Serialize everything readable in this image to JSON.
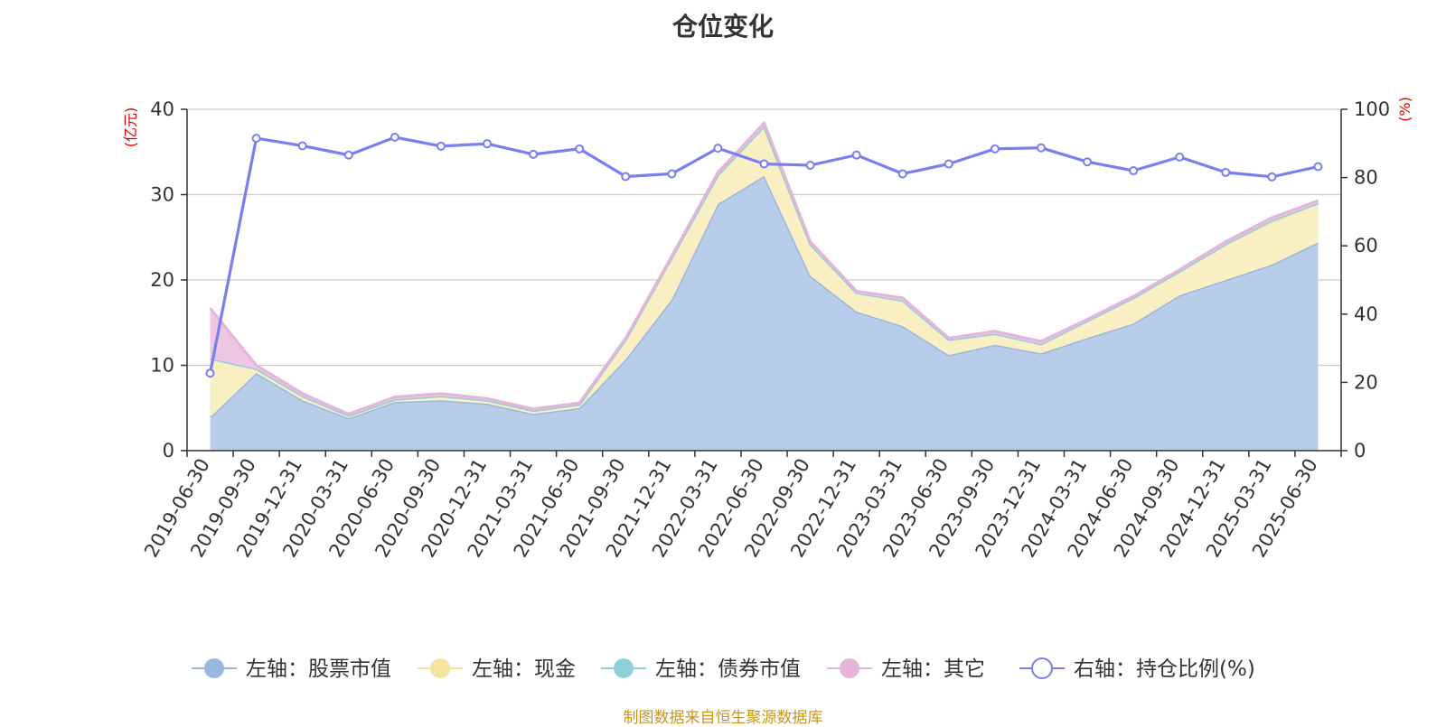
{
  "title": "仓位变化",
  "source": "制图数据来自恒生聚源数据库",
  "chart_data": {
    "type": "area",
    "categories": [
      "2019-06-30",
      "2019-09-30",
      "2019-12-31",
      "2020-03-31",
      "2020-06-30",
      "2020-09-30",
      "2020-12-31",
      "2021-03-31",
      "2021-06-30",
      "2021-09-30",
      "2021-12-31",
      "2022-03-31",
      "2022-06-30",
      "2022-09-30",
      "2022-12-31",
      "2023-03-31",
      "2023-06-30",
      "2023-09-30",
      "2023-12-31",
      "2024-03-31",
      "2024-06-30",
      "2024-09-30",
      "2024-12-31",
      "2025-03-31",
      "2025-06-30"
    ],
    "left_axis": {
      "label": "(亿元)",
      "ylim": [
        0,
        40
      ],
      "ticks": [
        0,
        10,
        20,
        30,
        40
      ]
    },
    "right_axis": {
      "label": "(%)",
      "ylim": [
        0,
        100
      ],
      "ticks": [
        0,
        20,
        40,
        60,
        80,
        100
      ]
    },
    "series": [
      {
        "name": "左轴：股票市值",
        "axis": "left",
        "stacked": true,
        "color": "#9ab6e0",
        "fill": "#b8cdea",
        "values": [
          3.9,
          9.1,
          5.9,
          3.8,
          5.7,
          5.9,
          5.5,
          4.3,
          5.0,
          10.7,
          17.7,
          28.9,
          32.2,
          20.5,
          16.3,
          14.6,
          11.2,
          12.4,
          11.4,
          13.2,
          14.9,
          18.2,
          20.0,
          21.8,
          24.4
        ]
      },
      {
        "name": "左轴：现金",
        "axis": "left",
        "stacked": true,
        "color": "#f5e3a0",
        "fill": "#faefc3",
        "values": [
          6.9,
          0.5,
          0.5,
          0.3,
          0.3,
          0.5,
          0.4,
          0.4,
          0.4,
          2.3,
          4.9,
          3.4,
          5.8,
          3.7,
          2.2,
          3.0,
          1.8,
          1.3,
          1.1,
          2.0,
          3.0,
          2.8,
          4.2,
          5.0,
          4.6
        ]
      },
      {
        "name": "左轴：债券市值",
        "axis": "left",
        "stacked": true,
        "color": "#8fd0d8",
        "fill": "#b8e3e8",
        "values": [
          0,
          0,
          0,
          0,
          0,
          0,
          0,
          0,
          0,
          0,
          0,
          0,
          0,
          0,
          0,
          0,
          0,
          0,
          0,
          0,
          0,
          0,
          0,
          0.2,
          0
        ]
      },
      {
        "name": "左轴：其它",
        "axis": "left",
        "stacked": true,
        "color": "#e6b4d9",
        "fill": "#edc7e3",
        "values": [
          5.9,
          0.4,
          0.3,
          0.2,
          0.3,
          0.3,
          0.2,
          0.2,
          0.2,
          0.2,
          0.2,
          0.3,
          0.4,
          0.3,
          0.2,
          0.3,
          0.2,
          0.3,
          0.3,
          0.2,
          0.2,
          0.2,
          0.3,
          0.3,
          0.3
        ]
      },
      {
        "name": "右轴：持仓比例(%)",
        "axis": "right",
        "type": "line",
        "color": "#7b7ef0",
        "values": [
          22.7,
          91.5,
          89.3,
          86.6,
          91.8,
          89.2,
          89.9,
          86.8,
          88.4,
          80.3,
          81.1,
          88.6,
          84.0,
          83.6,
          86.6,
          81.1,
          84.0,
          88.4,
          88.7,
          84.6,
          82.0,
          86.0,
          81.5,
          80.2,
          83.2
        ]
      }
    ],
    "legend_position": "bottom",
    "grid": true
  }
}
